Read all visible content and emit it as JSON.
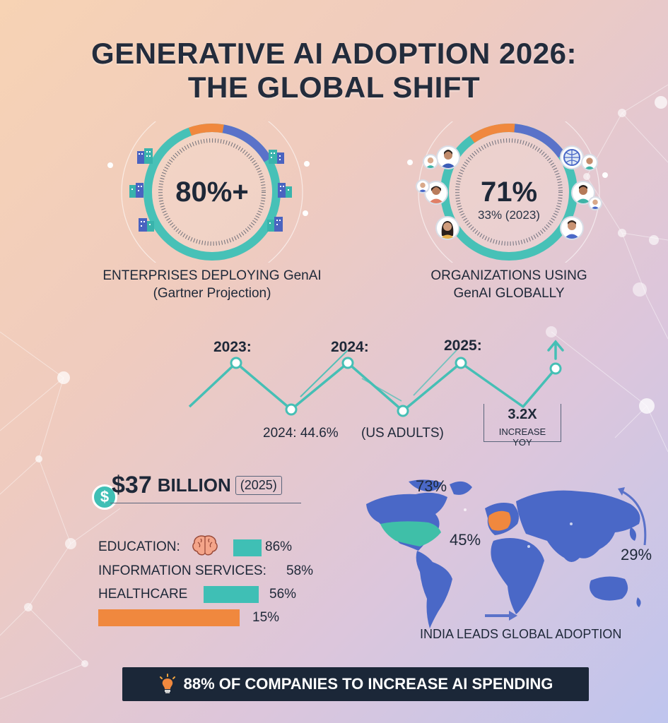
{
  "title": {
    "line1": "GENERATIVE AI ADOPTION 2026:",
    "line2": "THE GLOBAL SHIFT"
  },
  "enterprise_ring": {
    "value": "80%+",
    "label_line1": "ENTERPRISES DEPLOYING GenAI",
    "label_line2": "(Gartner Projection)",
    "icon": "building-icon",
    "fill_fraction": 0.8
  },
  "organizations_ring": {
    "value": "71%",
    "subvalue": "33% (2023)",
    "label_line1": "ORGANIZATIONS USING",
    "label_line2": "GenAI GLOBALLY",
    "icon": "person-icon",
    "fill_fraction": 0.71
  },
  "timeline": {
    "year_labels": [
      "2023:",
      "2024:",
      "2025:"
    ],
    "note_left": "2024: 44.6%",
    "note_mid": "(US ADULTS)",
    "growth_value": "3.2X",
    "growth_label": "INCREASE YOY"
  },
  "budget": {
    "amount": "$37",
    "unit": "BILLION",
    "year": "(2025)",
    "icon": "dollar-icon"
  },
  "sectors": [
    {
      "label": "EDUCATION:",
      "value": "86%",
      "color": "#3fbfb5",
      "icon": "brain-icon"
    },
    {
      "label": "INFORMATION SERVICES:",
      "value": "58%"
    },
    {
      "label": "HEALTHCARE",
      "value": "56%",
      "color": "#3fbfb5"
    },
    {
      "label": "",
      "value": "15%",
      "color": "#f0883e"
    }
  ],
  "map": {
    "pct_top": "73%",
    "pct_mid": "45%",
    "pct_right": "29%",
    "caption": "INDIA LEADS GLOBAL ADOPTION",
    "land_color": "#4a68c7",
    "highlight_teal": "#3fbfa8",
    "highlight_orange": "#f0883e"
  },
  "banner": {
    "text": "88% OF COMPANIES TO INCREASE AI SPENDING",
    "icon": "lightbulb-icon"
  },
  "colors": {
    "teal": "#3fbfb5",
    "orange": "#f0883e",
    "blue": "#5a72c9",
    "dark": "#1b2738"
  }
}
